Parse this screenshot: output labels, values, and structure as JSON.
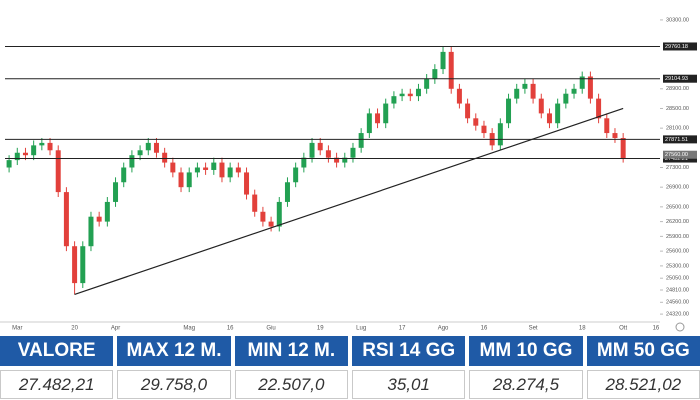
{
  "chart_data": {
    "type": "candlestick",
    "categories": [
      null,
      "Mar",
      null,
      null,
      null,
      null,
      null,
      null,
      "20",
      null,
      null,
      null,
      null,
      "Apr",
      null,
      null,
      null,
      null,
      null,
      null,
      null,
      null,
      "Mag",
      null,
      null,
      null,
      null,
      "16",
      null,
      null,
      null,
      null,
      "Giu",
      null,
      null,
      null,
      null,
      null,
      "19",
      null,
      null,
      null,
      null,
      "Lug",
      null,
      null,
      null,
      null,
      "17",
      null,
      null,
      null,
      null,
      "Ago",
      null,
      null,
      null,
      null,
      "16",
      null,
      null,
      null,
      null,
      null,
      "Set",
      null,
      null,
      null,
      null,
      null,
      "18",
      null,
      null,
      null,
      null,
      "Ott",
      null,
      null,
      null,
      "16"
    ],
    "open": [
      27300,
      27450,
      27600,
      27550,
      27750,
      27800,
      27650,
      26800,
      25700,
      24950,
      25700,
      26300,
      26200,
      26600,
      27000,
      27300,
      27550,
      27650,
      27800,
      27600,
      27400,
      27200,
      26900,
      27200,
      27300,
      27250,
      27400,
      27100,
      27300,
      27200,
      26750,
      26400,
      26200,
      26100,
      26600,
      27000,
      27300,
      27500,
      27800,
      27650,
      27500,
      27400,
      27500,
      27700,
      28000,
      28400,
      28200,
      28600,
      28750,
      28800,
      28750,
      28900,
      29100,
      29300,
      29650,
      28900,
      28600,
      28300,
      28150,
      28000,
      27750,
      28200,
      28700,
      28900,
      29000,
      28700,
      28400,
      28200,
      28600,
      28800,
      28900,
      29150,
      28700,
      28300,
      28000,
      27900,
      null,
      null,
      null,
      null
    ],
    "high": [
      27550,
      27700,
      27700,
      27850,
      27900,
      27900,
      27750,
      26900,
      25800,
      25800,
      26400,
      26400,
      26700,
      27100,
      27400,
      27650,
      27750,
      27900,
      27900,
      27700,
      27500,
      27300,
      27300,
      27400,
      27400,
      27500,
      27500,
      27400,
      27400,
      27300,
      26850,
      26500,
      26300,
      26700,
      27100,
      27400,
      27600,
      27900,
      27900,
      27750,
      27600,
      27600,
      27800,
      28100,
      28500,
      28500,
      28700,
      28850,
      28900,
      28900,
      29000,
      29200,
      29400,
      29760,
      29750,
      29000,
      28700,
      28400,
      28250,
      28100,
      28300,
      28800,
      29000,
      29100,
      29100,
      28800,
      28500,
      28700,
      28900,
      29000,
      29250,
      29250,
      28800,
      28400,
      28100,
      28000,
      null,
      null,
      null,
      null
    ],
    "low": [
      27200,
      27350,
      27450,
      27450,
      27650,
      27550,
      26700,
      25600,
      24720,
      24850,
      25600,
      26100,
      26100,
      26500,
      26900,
      27200,
      27450,
      27550,
      27500,
      27300,
      27100,
      26800,
      26800,
      27100,
      27150,
      27150,
      27000,
      27000,
      27100,
      26650,
      26300,
      26100,
      26000,
      26000,
      26500,
      26900,
      27200,
      27400,
      27550,
      27400,
      27300,
      27300,
      27400,
      27600,
      27900,
      28100,
      28100,
      28500,
      28650,
      28650,
      28650,
      28800,
      29000,
      29200,
      28800,
      28500,
      28200,
      28050,
      27900,
      27650,
      27650,
      28100,
      28600,
      28800,
      28600,
      28300,
      28100,
      28100,
      28500,
      28700,
      28800,
      28600,
      28200,
      27900,
      27800,
      27400,
      null,
      null,
      null,
      null
    ],
    "close": [
      27450,
      27600,
      27550,
      27750,
      27800,
      27650,
      26800,
      25700,
      24950,
      25700,
      26300,
      26200,
      26600,
      27000,
      27300,
      27550,
      27650,
      27800,
      27600,
      27400,
      27200,
      26900,
      27200,
      27300,
      27250,
      27400,
      27100,
      27300,
      27200,
      26750,
      26400,
      26200,
      26100,
      26600,
      27000,
      27300,
      27500,
      27800,
      27650,
      27500,
      27400,
      27500,
      27700,
      28000,
      28400,
      28200,
      28600,
      28750,
      28800,
      28750,
      28900,
      29100,
      29300,
      29650,
      28900,
      28600,
      28300,
      28150,
      28000,
      27750,
      28200,
      28700,
      28900,
      29000,
      28700,
      28400,
      28200,
      28600,
      28800,
      28900,
      29150,
      28700,
      28300,
      28000,
      27900,
      27480,
      null,
      null,
      null,
      null
    ],
    "up_color": "#22a052",
    "down_color": "#e2403b",
    "ylim": [
      24200,
      30400
    ],
    "yticks": [
      {
        "value": 30300,
        "label": "30300.00"
      },
      {
        "value": 28900,
        "label": "28900.00"
      },
      {
        "value": 28500,
        "label": "28500.00"
      },
      {
        "value": 28100,
        "label": "28100.00"
      },
      {
        "value": 27300,
        "label": "27300.00"
      },
      {
        "value": 26900,
        "label": "26900.00"
      },
      {
        "value": 26500,
        "label": "26500.00"
      },
      {
        "value": 26200,
        "label": "26200.00"
      },
      {
        "value": 25900,
        "label": "25900.00"
      },
      {
        "value": 25600,
        "label": "25600.00"
      },
      {
        "value": 25300,
        "label": "25300.00"
      },
      {
        "value": 25050,
        "label": "25050.00"
      },
      {
        "value": 24810,
        "label": "24810.00"
      },
      {
        "value": 24560,
        "label": "24560.00"
      },
      {
        "value": 24320,
        "label": "24320.00"
      }
    ],
    "levels": [
      29760.18,
      29104.93,
      27871.51,
      27482.21
    ],
    "price_labels": [
      {
        "value": 27560,
        "label": "27560.00"
      }
    ],
    "trendline": [
      24720,
      28500
    ]
  },
  "table": {
    "header": [
      "VALORE",
      "MAX 12 M.",
      "MIN 12 M.",
      "RSI 14 GG",
      "MM 10 GG",
      "MM 50 GG"
    ],
    "rows": [
      [
        "27.482,21",
        "29.758,0",
        "22.507,0",
        "35,01",
        "28.274,5",
        "28.521,02"
      ]
    ]
  }
}
